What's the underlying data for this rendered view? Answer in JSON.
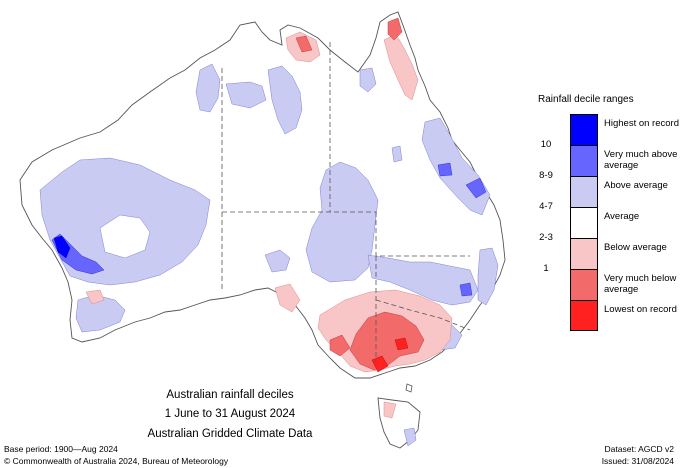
{
  "legend": {
    "title": "Rainfall decile ranges",
    "items": [
      {
        "label": "Highest on record",
        "decile": "",
        "color": "#0000ff"
      },
      {
        "label": "Very much above average",
        "decile": "10",
        "color": "#6666ff"
      },
      {
        "label": "Above average",
        "decile": "8-9",
        "color": "#c9cbf3"
      },
      {
        "label": "Average",
        "decile": "4-7",
        "color": "#ffffff"
      },
      {
        "label": "Below average",
        "decile": "2-3",
        "color": "#f8c6c6"
      },
      {
        "label": "Very much below average",
        "decile": "1",
        "color": "#f26a6a"
      },
      {
        "label": "Lowest on record",
        "decile": "",
        "color": "#ff2020"
      }
    ]
  },
  "caption": {
    "line1": "Australian rainfall deciles",
    "line2": "1 June to 31 August 2024",
    "line3": "Australian Gridded Climate Data"
  },
  "footer": {
    "base_period": "Base period: 1900—Aug 2024",
    "copyright": "© Commonwealth of Australia 2024, Bureau of Meteorology",
    "dataset": "Dataset: AGCD v2",
    "issued": "Issued: 31/08/2024"
  }
}
